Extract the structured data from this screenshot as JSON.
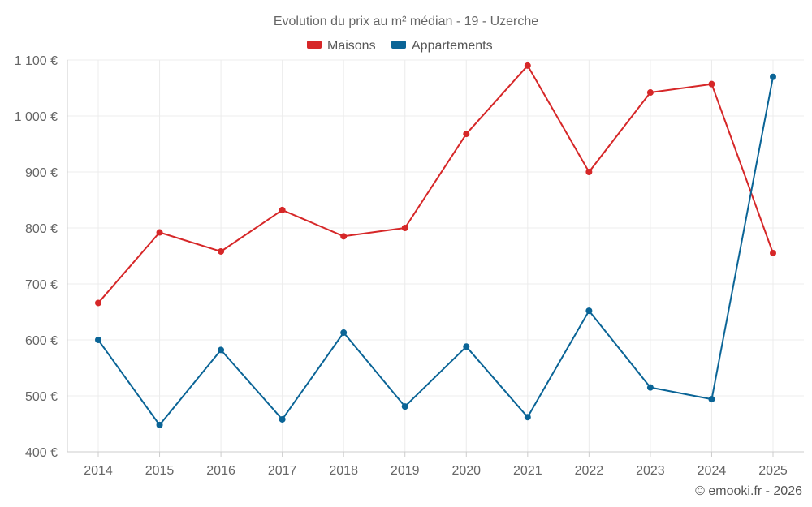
{
  "chart_data": {
    "type": "line",
    "title": "Evolution du prix au m² médian - 19 - Uzerche",
    "categories": [
      "2014",
      "2015",
      "2016",
      "2017",
      "2018",
      "2019",
      "2020",
      "2021",
      "2022",
      "2023",
      "2024",
      "2025"
    ],
    "ylim": [
      400,
      1100
    ],
    "yticks": [
      400,
      500,
      600,
      700,
      800,
      900,
      1000,
      1100
    ],
    "ytick_labels": [
      "400 €",
      "500 €",
      "600 €",
      "700 €",
      "800 €",
      "900 €",
      "1 000 €",
      "1 100 €"
    ],
    "grid": true,
    "legend_position": "top-center",
    "series": [
      {
        "name": "Maisons",
        "color": "#d62728",
        "values": [
          666,
          792,
          758,
          832,
          785,
          800,
          968,
          1090,
          900,
          1042,
          1057,
          755
        ]
      },
      {
        "name": "Appartements",
        "color": "#0a6496",
        "values": [
          600,
          448,
          582,
          458,
          613,
          481,
          588,
          462,
          652,
          515,
          494,
          1070
        ]
      }
    ]
  },
  "credit": "© emooki.fr - 2026"
}
